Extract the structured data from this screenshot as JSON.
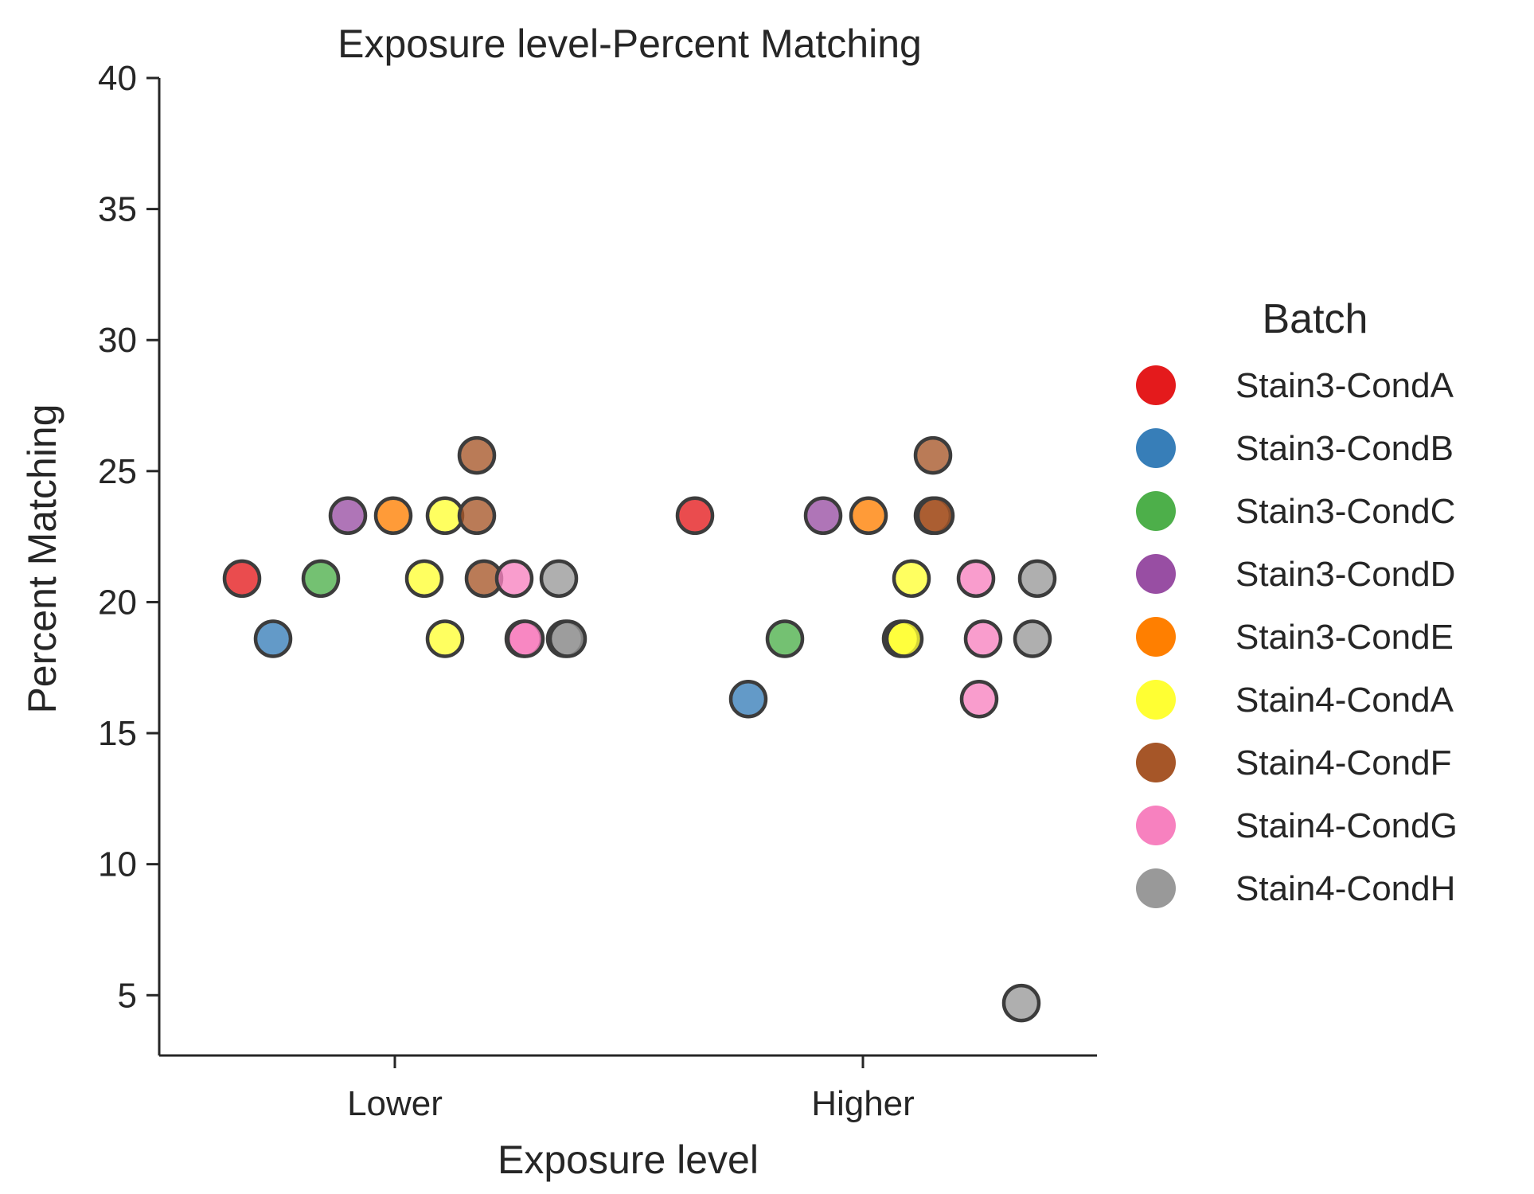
{
  "chart_data": {
    "type": "scatter",
    "title": "Exposure level-Percent Matching",
    "xlabel": "Exposure level",
    "ylabel": "Percent Matching",
    "categories": [
      "Lower",
      "Higher"
    ],
    "ylim": [
      2.7,
      40
    ],
    "yticks": [
      5,
      10,
      15,
      20,
      25,
      30,
      35,
      40
    ],
    "grid": false,
    "legend": {
      "title": "Batch",
      "placement": "right"
    },
    "series": [
      {
        "name": "Stain3-CondA",
        "color": "#e41a1c",
        "points": [
          {
            "x": "Lower",
            "y": 20.9
          },
          {
            "x": "Higher",
            "y": 23.3
          }
        ]
      },
      {
        "name": "Stain3-CondB",
        "color": "#377eb8",
        "points": [
          {
            "x": "Lower",
            "y": 18.6
          },
          {
            "x": "Higher",
            "y": 16.3
          }
        ]
      },
      {
        "name": "Stain3-CondC",
        "color": "#4daf4a",
        "points": [
          {
            "x": "Lower",
            "y": 20.9
          },
          {
            "x": "Higher",
            "y": 18.6
          }
        ]
      },
      {
        "name": "Stain3-CondD",
        "color": "#984ea3",
        "points": [
          {
            "x": "Lower",
            "y": 23.3
          },
          {
            "x": "Higher",
            "y": 23.3
          }
        ]
      },
      {
        "name": "Stain3-CondE",
        "color": "#ff7f00",
        "points": [
          {
            "x": "Lower",
            "y": 23.3
          },
          {
            "x": "Higher",
            "y": 23.3
          }
        ]
      },
      {
        "name": "Stain4-CondA",
        "color": "#ffff33",
        "points": [
          {
            "x": "Lower",
            "y": 23.3
          },
          {
            "x": "Lower",
            "y": 20.9
          },
          {
            "x": "Lower",
            "y": 18.6
          },
          {
            "x": "Higher",
            "y": 20.9
          },
          {
            "x": "Higher",
            "y": 18.6
          },
          {
            "x": "Higher",
            "y": 18.6
          }
        ]
      },
      {
        "name": "Stain4-CondF",
        "color": "#a65628",
        "points": [
          {
            "x": "Lower",
            "y": 25.6
          },
          {
            "x": "Lower",
            "y": 23.3
          },
          {
            "x": "Lower",
            "y": 20.9
          },
          {
            "x": "Higher",
            "y": 25.6
          },
          {
            "x": "Higher",
            "y": 23.3
          },
          {
            "x": "Higher",
            "y": 23.3
          }
        ]
      },
      {
        "name": "Stain4-CondG",
        "color": "#f781bf",
        "points": [
          {
            "x": "Lower",
            "y": 20.9
          },
          {
            "x": "Lower",
            "y": 18.6
          },
          {
            "x": "Lower",
            "y": 18.6
          },
          {
            "x": "Higher",
            "y": 20.9
          },
          {
            "x": "Higher",
            "y": 18.6
          },
          {
            "x": "Higher",
            "y": 16.3
          }
        ]
      },
      {
        "name": "Stain4-CondH",
        "color": "#999999",
        "points": [
          {
            "x": "Lower",
            "y": 20.9
          },
          {
            "x": "Lower",
            "y": 18.6
          },
          {
            "x": "Lower",
            "y": 18.6
          },
          {
            "x": "Higher",
            "y": 20.9
          },
          {
            "x": "Higher",
            "y": 18.6
          },
          {
            "x": "Higher",
            "y": 4.7
          }
        ]
      }
    ]
  }
}
